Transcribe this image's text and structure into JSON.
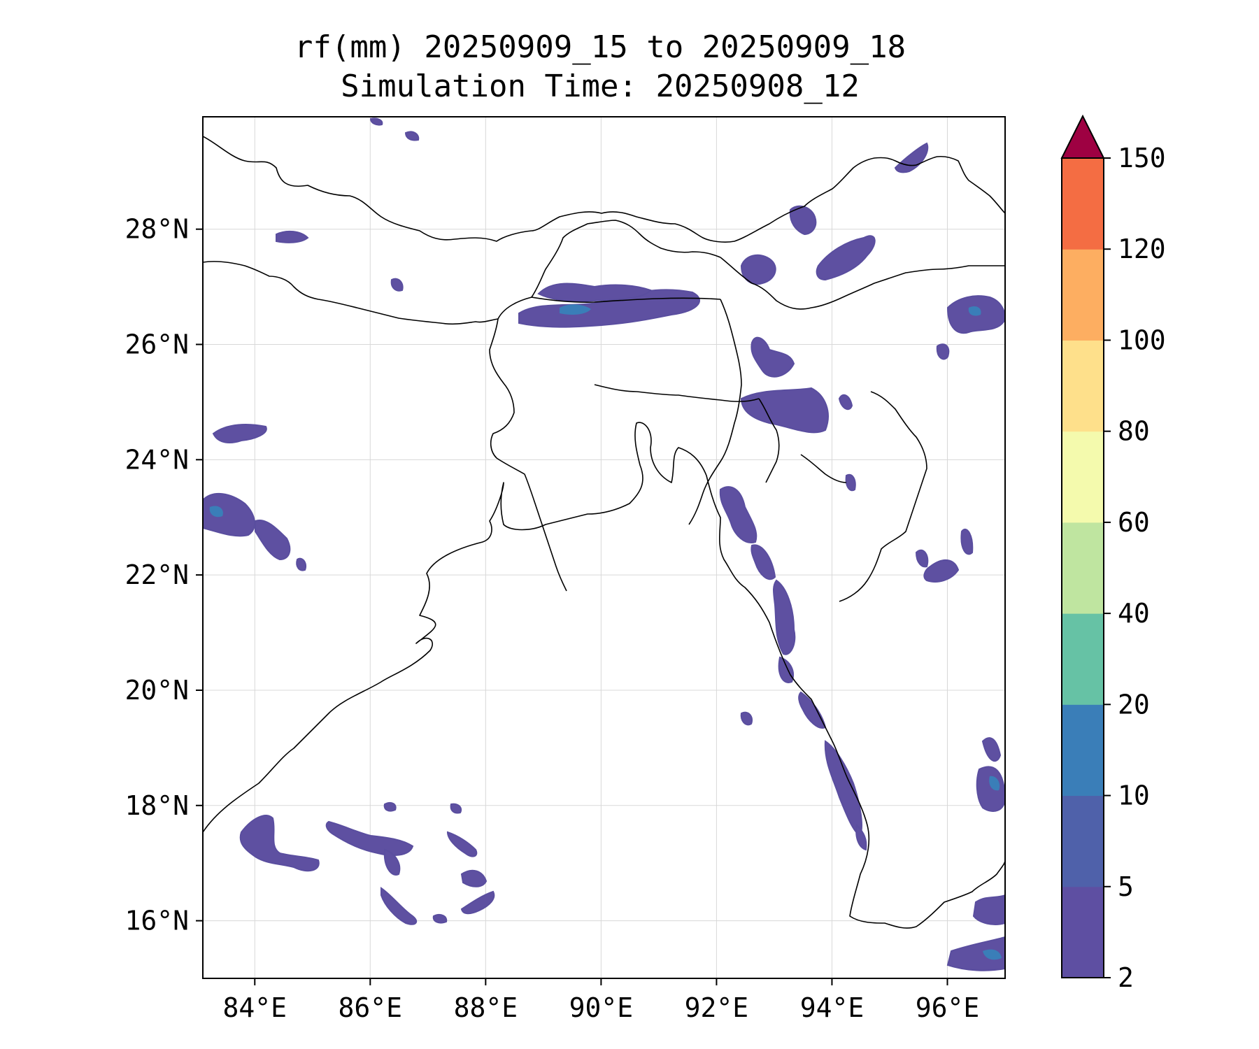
{
  "title": {
    "line1": "rf(mm) 20250909_15 to 20250909_18",
    "line2": "Simulation Time: 20250908_12"
  },
  "map": {
    "lon_range": [
      83.1,
      97.0
    ],
    "lat_range": [
      15.0,
      29.95
    ],
    "lon_ticks": [
      84,
      86,
      88,
      90,
      92,
      94,
      96
    ],
    "lat_ticks": [
      16,
      18,
      20,
      22,
      24,
      26,
      28
    ],
    "lon_tick_labels": [
      "84°E",
      "86°E",
      "88°E",
      "90°E",
      "92°E",
      "94°E",
      "96°E"
    ],
    "lat_tick_labels": [
      "16°N",
      "18°N",
      "20°N",
      "22°N",
      "24°N",
      "26°N",
      "28°N"
    ],
    "gridlines": true,
    "rain_color": "#5e50a1"
  },
  "colorbar": {
    "levels": [
      2,
      5,
      10,
      20,
      40,
      60,
      80,
      100,
      120,
      150
    ],
    "labels": [
      "2",
      "5",
      "10",
      "20",
      "40",
      "60",
      "80",
      "100",
      "120",
      "150"
    ],
    "colors": [
      "#5e4fa2",
      "#4f61aa",
      "#3a7eb8",
      "#66c2a5",
      "#bfe5a0",
      "#f4faad",
      "#fee08b",
      "#fdae61",
      "#f46d43",
      "#d53e4f"
    ],
    "extend_color": "#9e0142",
    "extend": "max",
    "placement": "right"
  }
}
